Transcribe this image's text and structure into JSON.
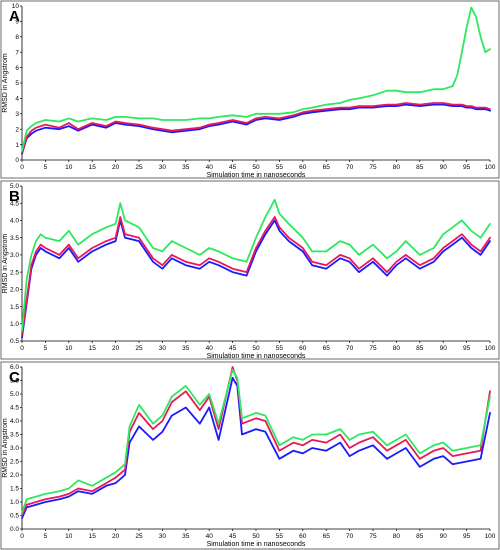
{
  "colors": {
    "series1": "#1a1aff",
    "series2": "#e8195a",
    "series3": "#2ee860"
  },
  "chart_data": [
    {
      "type": "line",
      "panel_label": "A",
      "xlabel": "Simulation time in nanoseconds",
      "ylabel": "RMSD in Angstrom",
      "xlim": [
        0,
        100
      ],
      "ylim": [
        0,
        10
      ],
      "xticks": [
        "0",
        "5",
        "10",
        "15",
        "20",
        "25",
        "30",
        "35",
        "40",
        "45",
        "50",
        "55",
        "60",
        "65",
        "70",
        "75",
        "80",
        "85",
        "90",
        "95",
        "100"
      ],
      "yticks": [
        "0",
        "1",
        "2",
        "3",
        "4",
        "5",
        "6",
        "7",
        "8",
        "9",
        "10"
      ],
      "x": [
        0,
        1,
        2,
        3,
        5,
        8,
        10,
        12,
        15,
        18,
        20,
        22,
        25,
        28,
        30,
        32,
        35,
        38,
        40,
        42,
        45,
        48,
        50,
        52,
        55,
        58,
        60,
        62,
        65,
        68,
        70,
        72,
        75,
        78,
        80,
        82,
        85,
        88,
        90,
        92,
        93,
        94,
        95,
        96,
        97,
        98,
        99,
        100
      ],
      "series": [
        {
          "color_key": "series1",
          "values": [
            0.4,
            1.4,
            1.7,
            1.9,
            2.1,
            2.0,
            2.2,
            1.9,
            2.3,
            2.1,
            2.4,
            2.3,
            2.2,
            2.0,
            1.9,
            1.8,
            1.9,
            2.0,
            2.2,
            2.3,
            2.5,
            2.3,
            2.6,
            2.7,
            2.6,
            2.8,
            3.0,
            3.1,
            3.2,
            3.3,
            3.3,
            3.4,
            3.4,
            3.5,
            3.5,
            3.6,
            3.5,
            3.6,
            3.6,
            3.5,
            3.5,
            3.5,
            3.4,
            3.4,
            3.3,
            3.3,
            3.3,
            3.2
          ]
        },
        {
          "color_key": "series2",
          "values": [
            0.5,
            1.5,
            1.9,
            2.1,
            2.3,
            2.1,
            2.4,
            2.0,
            2.4,
            2.2,
            2.5,
            2.4,
            2.3,
            2.1,
            2.0,
            1.9,
            2.0,
            2.1,
            2.3,
            2.4,
            2.6,
            2.4,
            2.7,
            2.8,
            2.7,
            2.9,
            3.1,
            3.2,
            3.3,
            3.4,
            3.4,
            3.5,
            3.5,
            3.6,
            3.6,
            3.7,
            3.6,
            3.7,
            3.7,
            3.6,
            3.6,
            3.6,
            3.5,
            3.5,
            3.4,
            3.4,
            3.4,
            3.3
          ]
        },
        {
          "color_key": "series3",
          "values": [
            0.6,
            1.9,
            2.2,
            2.4,
            2.6,
            2.5,
            2.7,
            2.5,
            2.7,
            2.6,
            2.8,
            2.8,
            2.7,
            2.7,
            2.6,
            2.6,
            2.6,
            2.7,
            2.7,
            2.8,
            2.9,
            2.8,
            3.0,
            3.0,
            3.0,
            3.1,
            3.3,
            3.4,
            3.6,
            3.7,
            3.9,
            4.0,
            4.2,
            4.5,
            4.5,
            4.4,
            4.4,
            4.6,
            4.6,
            4.8,
            5.5,
            7.0,
            8.6,
            9.9,
            9.3,
            8.0,
            7.0,
            7.2
          ]
        }
      ]
    },
    {
      "type": "line",
      "panel_label": "B",
      "xlabel": "Simulation time in nanoseconds",
      "ylabel": "RMSD in Angstrom",
      "xlim": [
        0,
        100
      ],
      "ylim": [
        0.5,
        5.0
      ],
      "xticks": [
        "0",
        "5",
        "10",
        "15",
        "20",
        "25",
        "30",
        "35",
        "40",
        "45",
        "50",
        "55",
        "60",
        "65",
        "70",
        "75",
        "80",
        "85",
        "90",
        "95",
        "100"
      ],
      "yticks": [
        "0.5",
        "1.0",
        "1.5",
        "2.0",
        "2.5",
        "3.0",
        "3.5",
        "4.0",
        "4.5",
        "5.0"
      ],
      "x": [
        0,
        1,
        2,
        3,
        4,
        5,
        8,
        10,
        12,
        15,
        18,
        20,
        21,
        22,
        25,
        28,
        30,
        32,
        35,
        38,
        40,
        42,
        45,
        48,
        50,
        52,
        54,
        55,
        57,
        60,
        62,
        65,
        68,
        70,
        72,
        75,
        78,
        80,
        82,
        85,
        88,
        90,
        92,
        94,
        96,
        98,
        100
      ],
      "series": [
        {
          "color_key": "series1",
          "values": [
            0.6,
            1.6,
            2.6,
            3.0,
            3.2,
            3.1,
            2.9,
            3.2,
            2.8,
            3.1,
            3.3,
            3.4,
            4.0,
            3.5,
            3.4,
            2.8,
            2.6,
            2.9,
            2.7,
            2.6,
            2.8,
            2.7,
            2.5,
            2.4,
            3.1,
            3.6,
            4.0,
            3.7,
            3.4,
            3.1,
            2.7,
            2.6,
            2.9,
            2.8,
            2.5,
            2.8,
            2.4,
            2.7,
            2.9,
            2.6,
            2.8,
            3.1,
            3.3,
            3.5,
            3.2,
            3.0,
            3.4
          ]
        },
        {
          "color_key": "series2",
          "values": [
            0.7,
            1.7,
            2.7,
            3.1,
            3.3,
            3.2,
            3.0,
            3.3,
            2.9,
            3.2,
            3.4,
            3.5,
            4.1,
            3.6,
            3.5,
            2.9,
            2.7,
            3.0,
            2.8,
            2.7,
            2.9,
            2.8,
            2.6,
            2.5,
            3.2,
            3.7,
            4.1,
            3.8,
            3.5,
            3.2,
            2.8,
            2.7,
            3.0,
            2.9,
            2.6,
            2.9,
            2.5,
            2.8,
            3.0,
            2.7,
            2.9,
            3.2,
            3.4,
            3.6,
            3.3,
            3.1,
            3.5
          ]
        },
        {
          "color_key": "series3",
          "values": [
            0.8,
            2.3,
            3.0,
            3.4,
            3.6,
            3.5,
            3.4,
            3.7,
            3.3,
            3.6,
            3.8,
            3.9,
            4.5,
            4.0,
            3.8,
            3.2,
            3.1,
            3.4,
            3.2,
            3.0,
            3.2,
            3.1,
            2.9,
            2.8,
            3.5,
            4.1,
            4.6,
            4.2,
            3.9,
            3.5,
            3.1,
            3.1,
            3.4,
            3.3,
            3.0,
            3.3,
            2.9,
            3.1,
            3.4,
            3.0,
            3.2,
            3.6,
            3.8,
            4.0,
            3.7,
            3.5,
            3.9
          ]
        }
      ]
    },
    {
      "type": "line",
      "panel_label": "C",
      "xlabel": "Simulation time in nanoseconds",
      "ylabel": "RMSD in Angstrom",
      "xlim": [
        0,
        100
      ],
      "ylim": [
        0,
        6.0
      ],
      "xticks": [
        "0",
        "5",
        "10",
        "15",
        "20",
        "25",
        "30",
        "35",
        "40",
        "45",
        "50",
        "55",
        "60",
        "65",
        "70",
        "75",
        "80",
        "85",
        "90",
        "95",
        "100"
      ],
      "yticks": [
        "0.0",
        "0.5",
        "1.0",
        "1.5",
        "2.0",
        "2.5",
        "3.0",
        "3.5",
        "4.0",
        "4.5",
        "5.0",
        "5.5",
        "6.0"
      ],
      "x": [
        0,
        1,
        3,
        5,
        8,
        10,
        12,
        15,
        18,
        20,
        22,
        23,
        25,
        28,
        30,
        32,
        35,
        38,
        40,
        42,
        45,
        46,
        47,
        50,
        52,
        55,
        58,
        60,
        62,
        65,
        68,
        70,
        72,
        75,
        78,
        80,
        82,
        85,
        88,
        90,
        92,
        95,
        98,
        100
      ],
      "series": [
        {
          "color_key": "series1",
          "values": [
            0.4,
            0.8,
            0.9,
            1.0,
            1.1,
            1.2,
            1.4,
            1.3,
            1.6,
            1.7,
            2.0,
            3.2,
            3.8,
            3.3,
            3.6,
            4.2,
            4.5,
            3.9,
            4.5,
            3.3,
            5.6,
            5.3,
            3.5,
            3.7,
            3.6,
            2.6,
            2.9,
            2.8,
            3.0,
            2.9,
            3.2,
            2.7,
            2.9,
            3.1,
            2.6,
            2.8,
            3.0,
            2.3,
            2.6,
            2.7,
            2.4,
            2.5,
            2.6,
            4.3
          ]
        },
        {
          "color_key": "series2",
          "values": [
            0.5,
            0.9,
            1.0,
            1.1,
            1.2,
            1.3,
            1.5,
            1.4,
            1.7,
            1.9,
            2.2,
            3.6,
            4.3,
            3.7,
            4.0,
            4.7,
            5.1,
            4.4,
            4.9,
            3.7,
            6.0,
            5.5,
            3.9,
            4.1,
            4.0,
            2.9,
            3.2,
            3.1,
            3.3,
            3.2,
            3.5,
            3.0,
            3.2,
            3.4,
            2.9,
            3.1,
            3.3,
            2.6,
            2.9,
            3.0,
            2.7,
            2.8,
            2.9,
            5.1
          ]
        },
        {
          "color_key": "series3",
          "values": [
            0.6,
            1.1,
            1.2,
            1.3,
            1.4,
            1.5,
            1.8,
            1.6,
            1.9,
            2.1,
            2.4,
            3.8,
            4.6,
            3.9,
            4.2,
            4.9,
            5.3,
            4.6,
            5.0,
            3.9,
            5.9,
            5.6,
            4.1,
            4.3,
            4.2,
            3.1,
            3.4,
            3.3,
            3.5,
            3.5,
            3.7,
            3.3,
            3.5,
            3.6,
            3.1,
            3.3,
            3.5,
            2.8,
            3.1,
            3.2,
            2.9,
            3.0,
            3.1,
            4.9
          ]
        }
      ]
    }
  ]
}
